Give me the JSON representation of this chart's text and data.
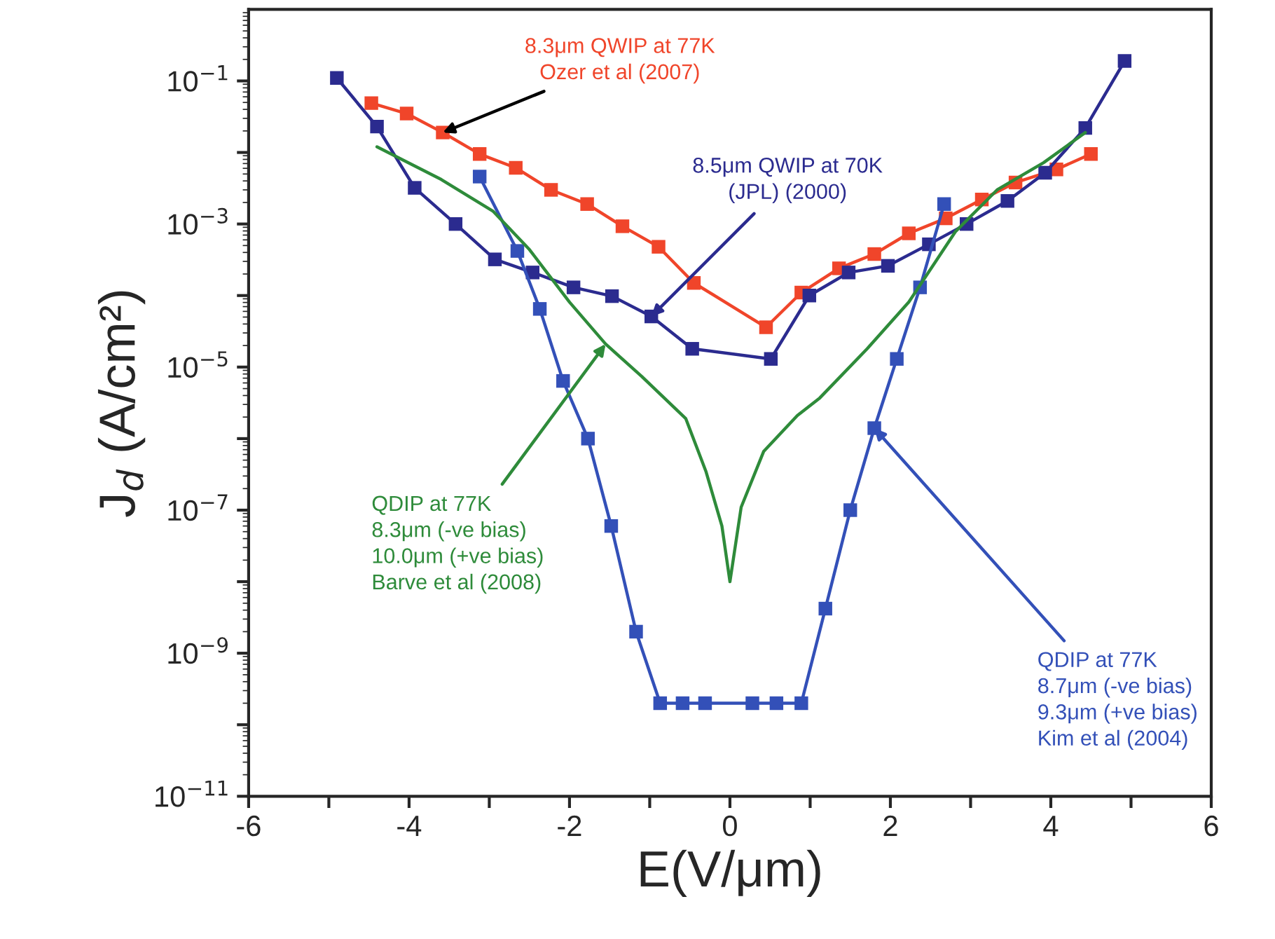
{
  "chart_data": {
    "type": "line",
    "xlabel": "E(V/μm)",
    "ylabel": "J$_{d}$ (A/cm²)",
    "log": "y",
    "xlim": [
      -6,
      6
    ],
    "xticks": [
      -6,
      {
        "value": -5,
        "label": null
      },
      -4,
      {
        "value": -3,
        "label": null
      },
      -2,
      {
        "value": -1,
        "label": null
      },
      0,
      {
        "value": 1,
        "label": null
      },
      2,
      {
        "value": 3,
        "label": null
      },
      4,
      {
        "value": 5,
        "label": null
      },
      6
    ],
    "ylim": [
      1e-11,
      1
    ],
    "yticks": [
      {
        "value": 1e-11,
        "label": "10$^{−11}$"
      },
      {
        "value": 1e-10,
        "label": null
      },
      {
        "value": 1e-09,
        "label": "10$^{−9}$"
      },
      {
        "value": 1e-08,
        "label": null
      },
      {
        "value": 1e-07,
        "label": "10$^{−7}$"
      },
      {
        "value": 1e-06,
        "label": null
      },
      {
        "value": 1e-05,
        "label": "10$^{−5}$"
      },
      {
        "value": 0.0001,
        "label": null
      },
      {
        "value": 0.001,
        "label": "10$^{−3}$"
      },
      {
        "value": 0.01,
        "label": null
      },
      {
        "value": 0.1,
        "label": "10$^{−1}$"
      }
    ],
    "grid": false,
    "legend": false,
    "series": [
      {
        "color": "#f0452a",
        "marker": "square",
        "x": [
          -4.47,
          -4.03,
          -3.58,
          -3.12,
          -2.67,
          -2.23,
          -1.78,
          -1.34,
          -0.89,
          -0.45,
          0.45,
          0.89,
          1.36,
          1.8,
          2.23,
          2.69,
          3.14,
          3.56,
          4.07,
          4.5
        ],
        "values": [
          0.049,
          0.035,
          0.019,
          0.0095,
          0.0061,
          0.003,
          0.0019,
          0.00093,
          0.00048,
          0.00015,
          3.6e-05,
          0.00011,
          0.00024,
          0.00038,
          0.00074,
          0.0012,
          0.0022,
          0.0038,
          0.0058,
          0.0095
        ]
      },
      {
        "color": "#2b2b8f",
        "marker": "square",
        "x": [
          -4.9,
          -4.4,
          -3.93,
          -3.42,
          -2.93,
          -2.46,
          -1.95,
          -1.47,
          -0.98,
          -0.47,
          0.51,
          0.99,
          1.48,
          1.97,
          2.48,
          2.95,
          3.46,
          3.93,
          4.43,
          4.92
        ],
        "values": [
          0.11,
          0.023,
          0.0032,
          0.001,
          0.00032,
          0.00021,
          0.00013,
          9.8e-05,
          5.1e-05,
          1.8e-05,
          1.3e-05,
          0.0001,
          0.00021,
          0.00026,
          0.00052,
          0.001,
          0.0021,
          0.0052,
          0.022,
          0.19
        ]
      },
      {
        "color": "#3350b8",
        "marker": "square",
        "x": [
          -3.12,
          -2.65,
          -2.37,
          -2.08,
          -1.77,
          -1.48,
          -1.17,
          -0.87,
          -0.59,
          -0.31,
          0.28,
          0.58,
          0.89,
          1.19,
          1.5,
          1.8,
          2.08,
          2.37,
          2.67
        ],
        "values": [
          0.0046,
          0.00042,
          6.5e-05,
          6.4e-06,
          1e-06,
          6e-08,
          2e-09,
          2e-10,
          2e-10,
          2e-10,
          2e-10,
          2e-10,
          2e-10,
          4.2e-09,
          1e-07,
          1.4e-06,
          1.3e-05,
          0.00013,
          0.0019
        ]
      },
      {
        "color": "#2e8b3a",
        "marker": "none",
        "x": [
          -4.4,
          -3.6,
          -2.95,
          -2.5,
          -2.0,
          -1.55,
          -1.1,
          -0.55,
          -0.3,
          -0.1,
          0,
          0.14,
          0.42,
          0.84,
          1.12,
          1.71,
          2.23,
          2.81,
          3.33,
          3.91,
          4.43
        ],
        "values": [
          0.012,
          0.0042,
          0.0015,
          0.00044,
          8.1e-05,
          2.1e-05,
          7.4e-06,
          1.9e-06,
          3.5e-07,
          6e-08,
          1e-08,
          1.1e-07,
          6.6e-07,
          2.1e-06,
          3.7e-06,
          1.8e-05,
          8.1e-05,
          0.00078,
          0.003,
          0.0072,
          0.019
        ]
      }
    ],
    "annotations": [
      {
        "text": "8.3μm QWIP at 77K\nOzer et al (2007)",
        "x": -3.58,
        "y": 0.019
      },
      {
        "text": "8.5μm QWIP at 70K\n(JPL) (2000)",
        "x": -0.98,
        "y": 5.1e-05
      },
      {
        "text": "QDIP at 77K\n8.3μm (-ve bias)\n10.0μm (+ve bias)\nBarve et al (2008)",
        "x": -1.55,
        "y": 2.1e-05
      },
      {
        "text": "QDIP at 77K\n8.7μm (-ve bias)\n9.3μm (+ve bias)\nKim et al (2004)",
        "x": 1.8,
        "y": 1.4e-06
      }
    ]
  }
}
